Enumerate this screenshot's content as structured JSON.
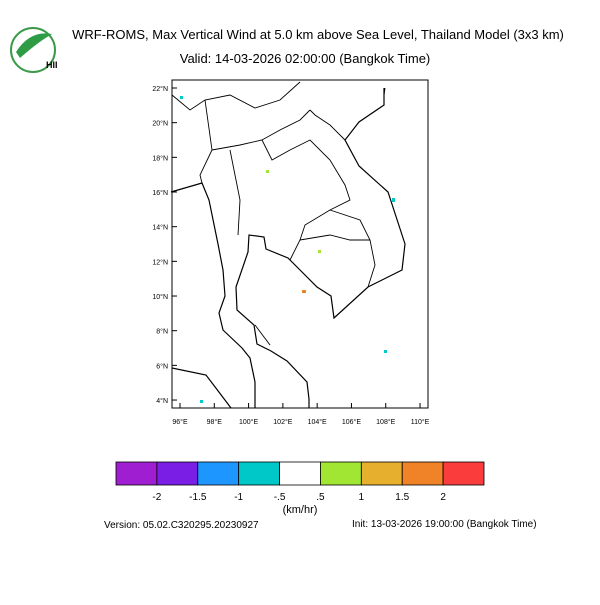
{
  "header": {
    "logo_text": "HII",
    "title": "WRF-ROMS, Max Vertical Wind at 5.0 km above Sea Level, Thailand Model (3x3 km)",
    "subtitle": "Valid: 14-03-2026 02:00:00 (Bangkok Time)"
  },
  "map": {
    "lat_labels": [
      "22°N",
      "20°N",
      "18°N",
      "16°N",
      "14°N",
      "12°N",
      "10°N",
      "8°N",
      "6°N",
      "4°N"
    ],
    "lon_labels": [
      "96°E",
      "98°E",
      "100°E",
      "102°E",
      "104°E",
      "106°E",
      "108°E",
      "110°E"
    ]
  },
  "colorbar": {
    "colors": [
      "#a01ed2",
      "#7a1ee6",
      "#1e96ff",
      "#00c8c8",
      "#ffffff",
      "#a0e632",
      "#e6af2d",
      "#f08228",
      "#fa3c3c"
    ],
    "labels": [
      "-2",
      "-1.5",
      "-1",
      "-.5",
      ".5",
      "1",
      "1.5",
      "2"
    ],
    "unit": "(km/hr)"
  },
  "footer": {
    "version": "Version: 05.02.C320295.20230927",
    "init": "Init: 13-03-2026 19:00:00 (Bangkok Time)"
  }
}
